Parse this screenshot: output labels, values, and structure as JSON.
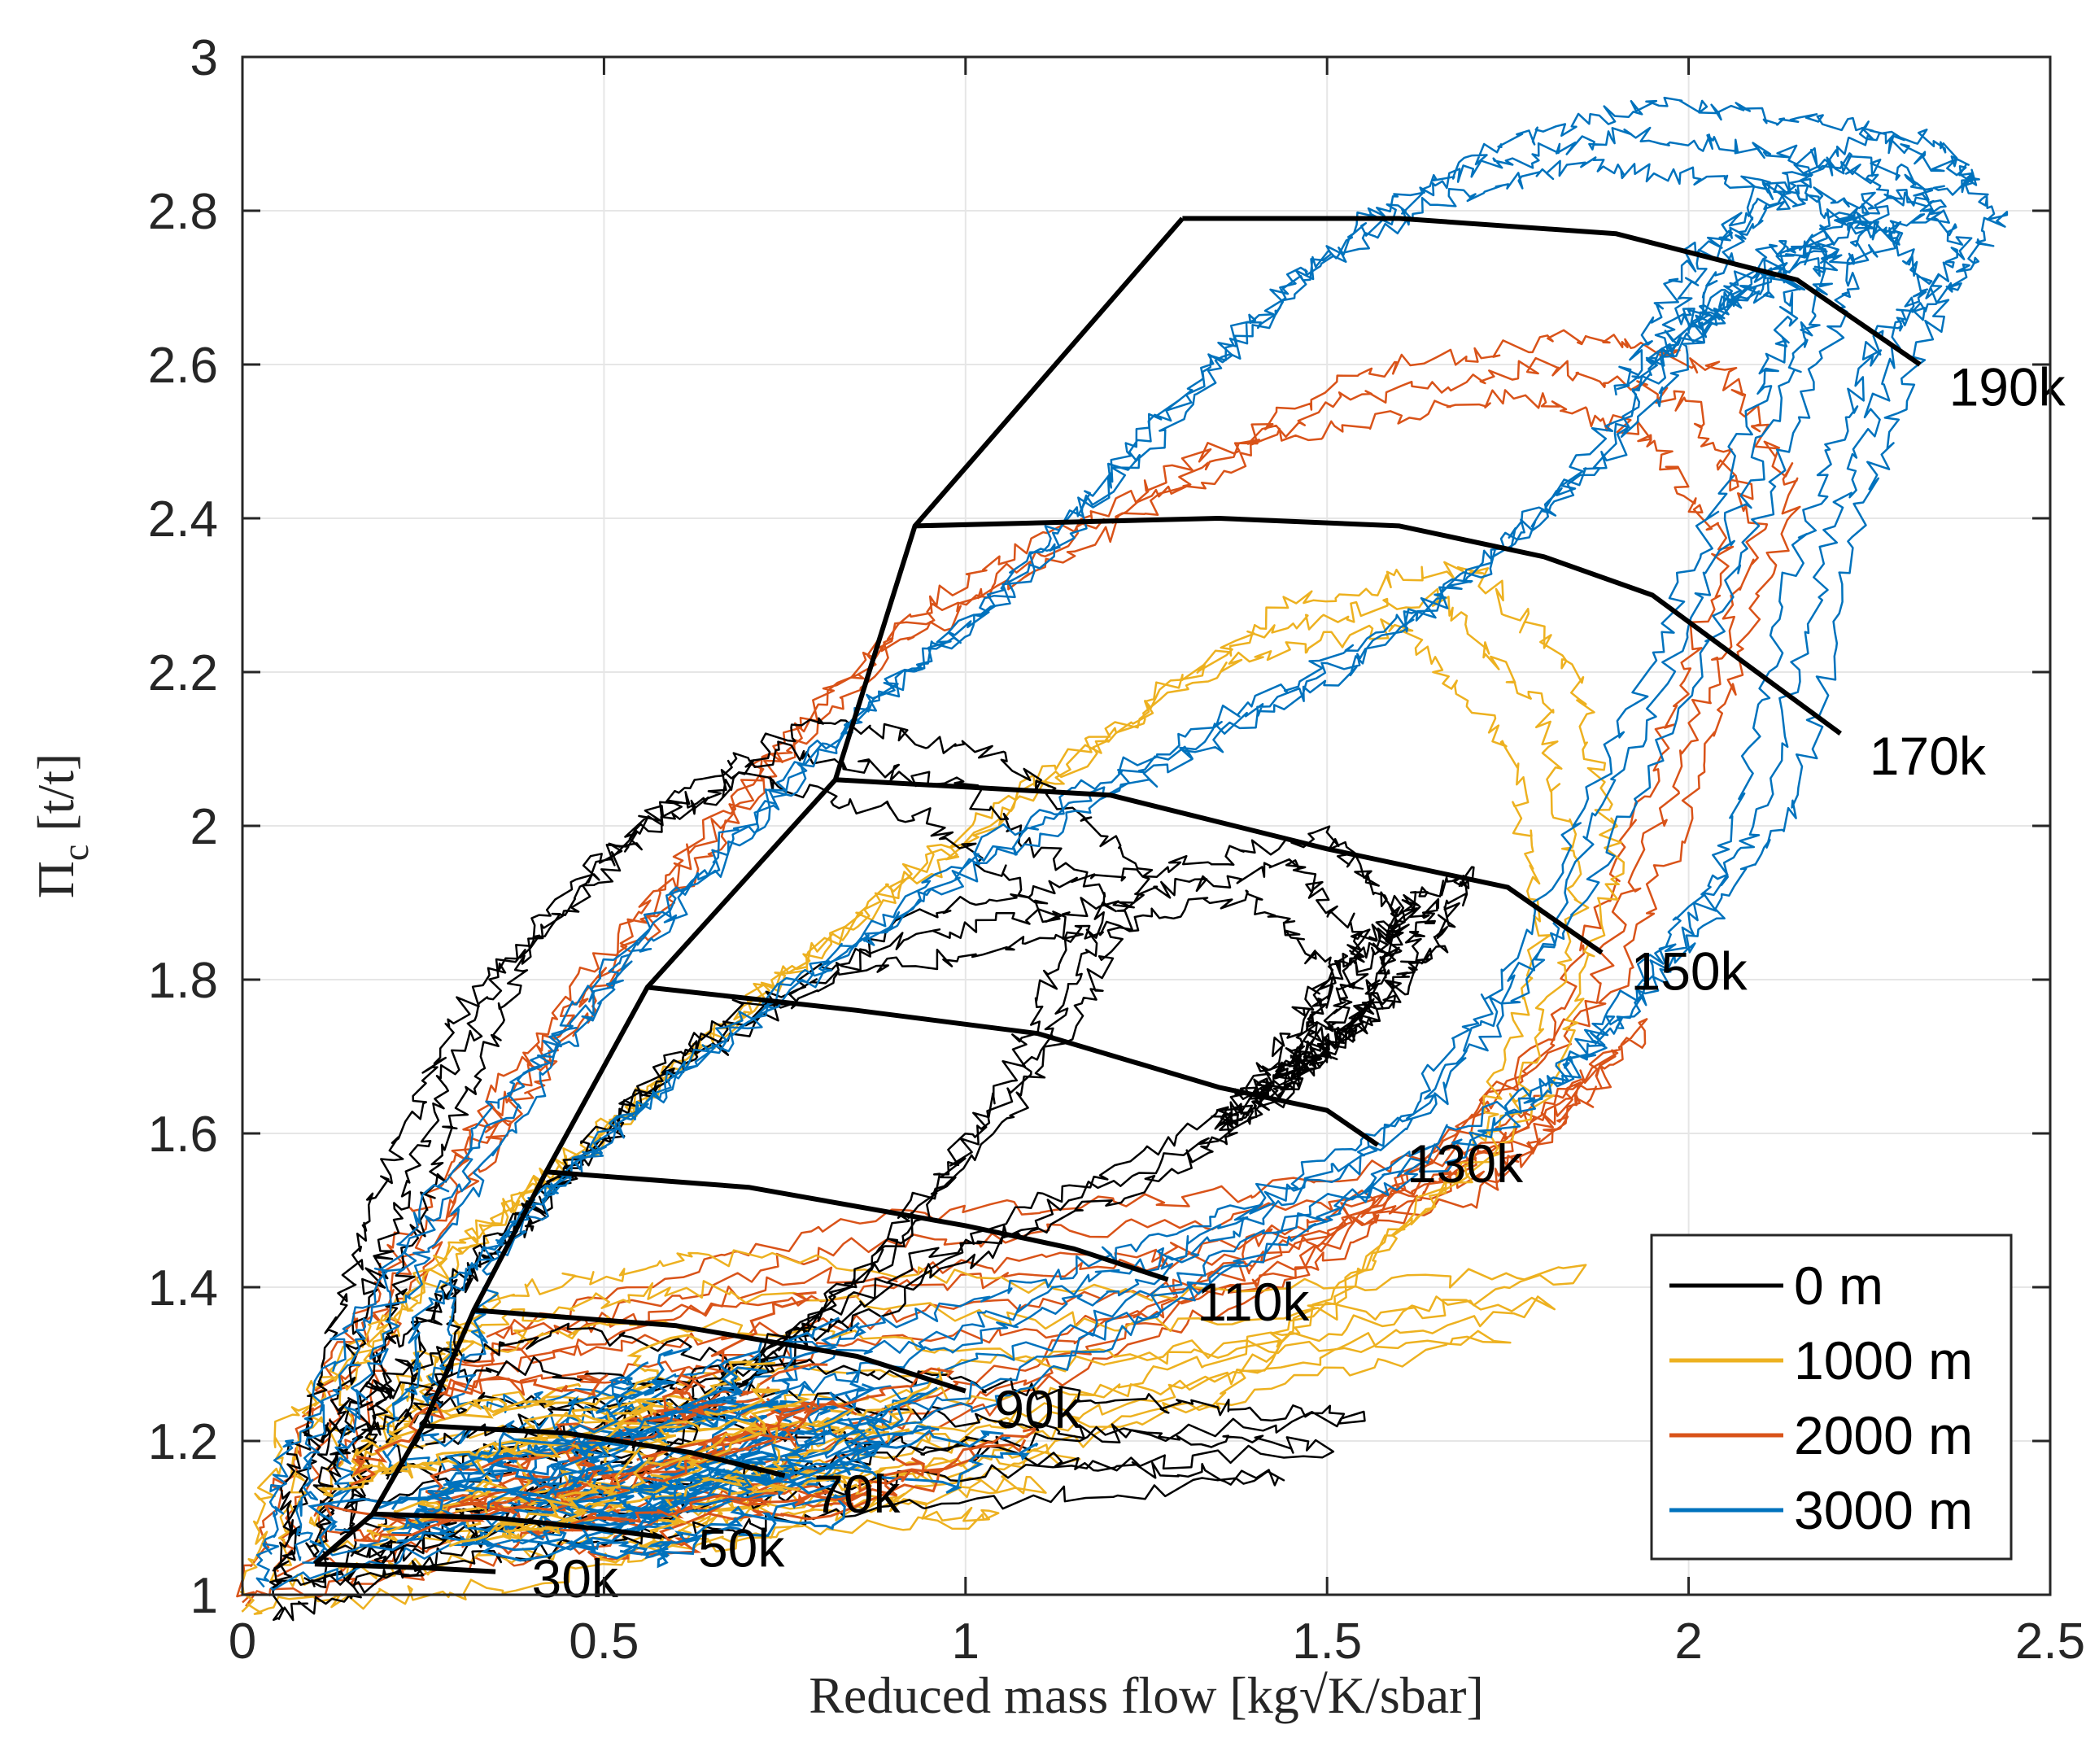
{
  "chart_data": {
    "type": "line",
    "title": "",
    "xlabel": "Reduced mass flow [kg√K/sbar]",
    "ylabel_main": "Π",
    "ylabel_sub": "c",
    "ylabel_unit": "[t/t]",
    "xlim": [
      0,
      2.5
    ],
    "ylim": [
      1,
      3
    ],
    "xticks": [
      0,
      0.5,
      1,
      1.5,
      2,
      2.5
    ],
    "xtick_labels": [
      "0",
      "0.5",
      "1",
      "1.5",
      "2",
      "2.5"
    ],
    "yticks": [
      1,
      1.2,
      1.4,
      1.6,
      1.8,
      2,
      2.2,
      2.4,
      2.6,
      2.8,
      3
    ],
    "ytick_labels": [
      "1",
      "1.2",
      "1.4",
      "1.6",
      "1.8",
      "2",
      "2.2",
      "2.4",
      "2.6",
      "2.8",
      "3"
    ],
    "grid": true,
    "legend_position": "bottom-right",
    "series": [
      {
        "name": "0 m",
        "color": "#000000",
        "loops": [
          [
            [
              0.1,
              1.01
            ],
            [
              0.3,
              1.08
            ],
            [
              0.6,
              1.2
            ],
            [
              0.9,
              1.45
            ],
            [
              1.1,
              1.7
            ],
            [
              1.2,
              1.9
            ],
            [
              1.0,
              2.05
            ],
            [
              0.75,
              2.1
            ],
            [
              0.55,
              2.0
            ],
            [
              0.35,
              1.8
            ],
            [
              0.25,
              1.6
            ],
            [
              0.18,
              1.4
            ],
            [
              0.12,
              1.2
            ],
            [
              0.1,
              1.01
            ]
          ],
          [
            [
              0.2,
              1.15
            ],
            [
              0.6,
              1.25
            ],
            [
              1.0,
              1.45
            ],
            [
              1.35,
              1.6
            ],
            [
              1.5,
              1.7
            ],
            [
              1.55,
              1.85
            ],
            [
              1.45,
              1.95
            ],
            [
              1.2,
              1.9
            ],
            [
              0.9,
              1.85
            ],
            [
              0.6,
              1.7
            ],
            [
              0.4,
              1.5
            ],
            [
              0.25,
              1.35
            ],
            [
              0.2,
              1.15
            ]
          ],
          [
            [
              0.1,
              1.05
            ],
            [
              0.5,
              1.1
            ],
            [
              0.9,
              1.15
            ],
            [
              1.5,
              1.19
            ],
            [
              1.2,
              1.21
            ],
            [
              0.8,
              1.25
            ],
            [
              0.4,
              1.3
            ],
            [
              0.15,
              1.25
            ],
            [
              0.1,
              1.05
            ]
          ],
          [
            [
              1.4,
              1.65
            ],
            [
              1.5,
              1.7
            ],
            [
              1.6,
              1.8
            ],
            [
              1.65,
              1.9
            ],
            [
              1.55,
              1.85
            ],
            [
              1.45,
              1.7
            ],
            [
              1.4,
              1.65
            ]
          ]
        ]
      },
      {
        "name": "1000 m",
        "color": "#EDB120",
        "loops": [
          [
            [
              0.05,
              1.02
            ],
            [
              0.4,
              1.05
            ],
            [
              0.9,
              1.15
            ],
            [
              1.4,
              1.3
            ],
            [
              1.75,
              1.6
            ],
            [
              1.85,
              1.9
            ],
            [
              1.8,
              2.15
            ],
            [
              1.65,
              2.3
            ],
            [
              1.4,
              2.25
            ],
            [
              1.1,
              2.05
            ],
            [
              0.8,
              1.85
            ],
            [
              0.5,
              1.6
            ],
            [
              0.3,
              1.45
            ],
            [
              0.1,
              1.25
            ],
            [
              0.05,
              1.02
            ]
          ],
          [
            [
              0.2,
              1.2
            ],
            [
              0.7,
              1.25
            ],
            [
              1.3,
              1.27
            ],
            [
              1.8,
              1.38
            ],
            [
              1.2,
              1.35
            ],
            [
              0.6,
              1.4
            ],
            [
              0.3,
              1.35
            ],
            [
              0.2,
              1.2
            ]
          ],
          [
            [
              0.6,
              1.1
            ],
            [
              1.1,
              1.14
            ],
            [
              0.8,
              1.17
            ],
            [
              0.6,
              1.1
            ]
          ]
        ]
      },
      {
        "name": "2000 m",
        "color": "#D95319",
        "loops": [
          [
            [
              0.05,
              1.03
            ],
            [
              0.5,
              1.1
            ],
            [
              1.0,
              1.25
            ],
            [
              1.5,
              1.45
            ],
            [
              1.85,
              1.75
            ],
            [
              2.0,
              2.1
            ],
            [
              2.1,
              2.4
            ],
            [
              2.0,
              2.55
            ],
            [
              1.8,
              2.6
            ],
            [
              1.5,
              2.55
            ],
            [
              1.2,
              2.4
            ],
            [
              0.9,
              2.25
            ],
            [
              0.65,
              2.0
            ],
            [
              0.45,
              1.75
            ],
            [
              0.3,
              1.55
            ],
            [
              0.15,
              1.3
            ],
            [
              0.05,
              1.03
            ]
          ],
          [
            [
              0.3,
              1.3
            ],
            [
              0.8,
              1.35
            ],
            [
              1.3,
              1.4
            ],
            [
              1.6,
              1.5
            ],
            [
              1.9,
              1.7
            ],
            [
              1.75,
              1.55
            ],
            [
              1.3,
              1.48
            ],
            [
              0.8,
              1.45
            ],
            [
              0.3,
              1.3
            ]
          ]
        ]
      },
      {
        "name": "3000 m",
        "color": "#0072BD",
        "loops": [
          [
            [
              0.08,
              1.05
            ],
            [
              0.6,
              1.15
            ],
            [
              1.1,
              1.3
            ],
            [
              1.5,
              1.5
            ],
            [
              1.8,
              1.65
            ],
            [
              1.95,
              1.8
            ],
            [
              2.1,
              2.0
            ],
            [
              2.2,
              2.4
            ],
            [
              2.3,
              2.65
            ],
            [
              2.38,
              2.75
            ],
            [
              2.3,
              2.85
            ],
            [
              2.1,
              2.88
            ],
            [
              1.9,
              2.9
            ],
            [
              1.7,
              2.85
            ],
            [
              1.5,
              2.75
            ],
            [
              1.3,
              2.55
            ],
            [
              1.05,
              2.3
            ],
            [
              0.8,
              2.1
            ],
            [
              0.55,
              1.85
            ],
            [
              0.38,
              1.65
            ],
            [
              0.2,
              1.4
            ],
            [
              0.1,
              1.2
            ],
            [
              0.08,
              1.05
            ]
          ],
          [
            [
              0.25,
              1.2
            ],
            [
              0.6,
              1.25
            ],
            [
              1.0,
              1.35
            ],
            [
              1.3,
              1.45
            ],
            [
              1.6,
              1.6
            ],
            [
              1.8,
              1.85
            ],
            [
              2.0,
              2.25
            ],
            [
              2.15,
              2.6
            ],
            [
              2.2,
              2.75
            ],
            [
              2.05,
              2.7
            ],
            [
              1.85,
              2.45
            ],
            [
              1.6,
              2.25
            ],
            [
              1.3,
              2.1
            ],
            [
              1.0,
              1.95
            ],
            [
              0.7,
              1.75
            ],
            [
              0.45,
              1.55
            ],
            [
              0.3,
              1.4
            ],
            [
              0.25,
              1.2
            ]
          ],
          [
            [
              1.95,
              2.6
            ],
            [
              2.15,
              2.75
            ],
            [
              2.35,
              2.8
            ],
            [
              2.2,
              2.86
            ],
            [
              2.05,
              2.78
            ],
            [
              1.95,
              2.6
            ]
          ]
        ]
      }
    ],
    "speed_lines": [
      {
        "label": "30k",
        "points": [
          [
            0.1,
            1.04
          ],
          [
            0.25,
            1.035
          ],
          [
            0.35,
            1.03
          ]
        ],
        "label_x": 0.4,
        "label_y": 1.02
      },
      {
        "label": "50k",
        "points": [
          [
            0.18,
            1.105
          ],
          [
            0.35,
            1.1
          ],
          [
            0.5,
            1.085
          ],
          [
            0.58,
            1.075
          ]
        ],
        "label_x": 0.63,
        "label_y": 1.06
      },
      {
        "label": "70k",
        "points": [
          [
            0.25,
            1.22
          ],
          [
            0.45,
            1.21
          ],
          [
            0.62,
            1.185
          ],
          [
            0.75,
            1.155
          ]
        ],
        "label_x": 0.79,
        "label_y": 1.13
      },
      {
        "label": "90k",
        "points": [
          [
            0.32,
            1.37
          ],
          [
            0.6,
            1.35
          ],
          [
            0.85,
            1.31
          ],
          [
            1.0,
            1.265
          ]
        ],
        "label_x": 1.04,
        "label_y": 1.24
      },
      {
        "label": "110k",
        "points": [
          [
            0.42,
            1.55
          ],
          [
            0.7,
            1.53
          ],
          [
            1.0,
            1.48
          ],
          [
            1.15,
            1.45
          ],
          [
            1.28,
            1.41
          ]
        ],
        "label_x": 1.32,
        "label_y": 1.38
      },
      {
        "label": "130k",
        "points": [
          [
            0.56,
            1.79
          ],
          [
            0.85,
            1.76
          ],
          [
            1.1,
            1.73
          ],
          [
            1.35,
            1.66
          ],
          [
            1.5,
            1.63
          ],
          [
            1.57,
            1.585
          ]
        ],
        "label_x": 1.61,
        "label_y": 1.56
      },
      {
        "label": "150k",
        "points": [
          [
            0.82,
            2.06
          ],
          [
            1.2,
            2.04
          ],
          [
            1.5,
            1.97
          ],
          [
            1.75,
            1.92
          ],
          [
            1.88,
            1.835
          ]
        ],
        "label_x": 1.92,
        "label_y": 1.81
      },
      {
        "label": "170k",
        "points": [
          [
            0.93,
            2.39
          ],
          [
            1.35,
            2.4
          ],
          [
            1.6,
            2.39
          ],
          [
            1.8,
            2.35
          ],
          [
            1.95,
            2.3
          ],
          [
            2.21,
            2.12
          ]
        ],
        "label_x": 2.25,
        "label_y": 2.09
      },
      {
        "label": "190k",
        "points": [
          [
            1.3,
            2.79
          ],
          [
            1.6,
            2.79
          ],
          [
            1.9,
            2.77
          ],
          [
            2.15,
            2.71
          ],
          [
            2.32,
            2.6
          ]
        ],
        "label_x": 2.36,
        "label_y": 2.57
      }
    ],
    "surge_line": [
      [
        0.1,
        1.04
      ],
      [
        0.18,
        1.105
      ],
      [
        0.25,
        1.22
      ],
      [
        0.32,
        1.37
      ],
      [
        0.42,
        1.55
      ],
      [
        0.56,
        1.79
      ],
      [
        0.82,
        2.06
      ],
      [
        0.93,
        2.39
      ],
      [
        1.3,
        2.79
      ]
    ]
  }
}
